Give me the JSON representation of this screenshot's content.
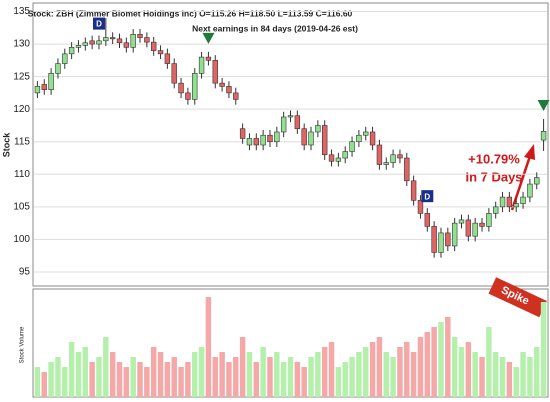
{
  "chart_data": {
    "type": "candlestick",
    "title": "Stock: ZBH (Zimmer Biomet Holdings Inc) O=115.26 H=118.50 L=113.59 C=116.60",
    "subtitle": "Next earnings in 84 days (2019-04-26 est)",
    "y_label": "Stock",
    "volume_label": "Stock Volume",
    "open": [
      122.5,
      123.8,
      123,
      125.5,
      127,
      128.5,
      129.5,
      129.8,
      130.5,
      130,
      130.5,
      131,
      130.8,
      130.2,
      129.5,
      131.5,
      131,
      130.3,
      129,
      128.5,
      127,
      124,
      122.5,
      121.5,
      125.5,
      128,
      127.5,
      124,
      123.5,
      122.5,
      117,
      114.5,
      115.5,
      114.5,
      116,
      115,
      116.5,
      118.8,
      119,
      117,
      114.5,
      116.5,
      117.5,
      113,
      112,
      112.5,
      113.5,
      115,
      116,
      116.5,
      114.5,
      111.5,
      111.8,
      113,
      112.5,
      109,
      106,
      104,
      102,
      98,
      101,
      99,
      102.5,
      103,
      100.5,
      102.5,
      102,
      104,
      105,
      106.5,
      105,
      105.5,
      106.5,
      108.5,
      115.26
    ],
    "high": [
      124.3,
      124.6,
      126.3,
      127.8,
      129.3,
      130.3,
      130.6,
      131,
      131.3,
      131.3,
      134,
      131.8,
      131.6,
      131,
      132.3,
      132.3,
      131.8,
      131.1,
      129.8,
      129.3,
      127.8,
      124.8,
      123.3,
      126.3,
      128.8,
      128.8,
      128.3,
      124.8,
      124.3,
      123.3,
      117.8,
      116.3,
      116.3,
      116.8,
      116.8,
      117.3,
      119.6,
      119.8,
      119.8,
      117.8,
      117.3,
      118.3,
      118.3,
      113.8,
      113.3,
      114.3,
      115.8,
      116.8,
      117.3,
      117.3,
      115.3,
      112.6,
      113.8,
      113.8,
      113.3,
      109.8,
      106.8,
      104.8,
      102.8,
      101.8,
      101.8,
      103.3,
      103.8,
      103.8,
      103.3,
      103.3,
      104.8,
      105.8,
      107.3,
      107.3,
      106.3,
      107.3,
      109.3,
      110.3,
      118.5
    ],
    "low": [
      121.7,
      122.2,
      122.2,
      124.7,
      126.2,
      127.7,
      128.7,
      129,
      129.2,
      129.2,
      129.7,
      130,
      129.4,
      128.7,
      128.7,
      130.2,
      129.5,
      128.2,
      127.7,
      126.2,
      123.2,
      121.7,
      120.7,
      120.7,
      124.7,
      126.7,
      123.2,
      122.7,
      121.7,
      120.7,
      114.7,
      113.7,
      113.7,
      113.7,
      114.2,
      114.2,
      115.7,
      118,
      116.2,
      113.7,
      113.7,
      115.7,
      112.2,
      111.2,
      111.2,
      111.7,
      112.7,
      114.2,
      115.2,
      113.7,
      110.7,
      110.7,
      111,
      111.7,
      108.2,
      105.2,
      103.2,
      101.2,
      97.2,
      97.2,
      98.2,
      98.2,
      101.7,
      99.7,
      99.7,
      101.2,
      101.2,
      103.2,
      104.2,
      104.2,
      104.2,
      104.7,
      105.7,
      107.7,
      113.59
    ],
    "close": [
      123.5,
      123,
      125.5,
      127,
      128.5,
      129.5,
      129.8,
      130.2,
      130,
      130.5,
      131,
      130.8,
      130.2,
      129.5,
      131.5,
      131,
      130.3,
      129,
      128.5,
      127,
      124,
      122.5,
      121.5,
      125.5,
      128,
      127.5,
      124,
      123.5,
      122.5,
      121.5,
      115.5,
      115.5,
      114.5,
      116,
      115,
      116.5,
      118.8,
      119,
      117,
      114.5,
      116.5,
      117.5,
      113,
      112,
      112.5,
      113.5,
      115,
      116,
      116.5,
      114.5,
      111.5,
      111.8,
      113,
      112.5,
      109,
      106,
      104,
      102,
      98,
      101,
      99,
      102.5,
      103,
      100.5,
      102.5,
      102,
      104,
      105,
      106.5,
      105,
      105.5,
      106.5,
      108.5,
      109.5,
      116.6
    ],
    "volume": [
      30,
      25,
      35,
      40,
      30,
      55,
      45,
      50,
      35,
      40,
      60,
      45,
      35,
      30,
      40,
      35,
      30,
      50,
      45,
      35,
      40,
      30,
      35,
      45,
      50,
      100,
      40,
      45,
      35,
      40,
      60,
      45,
      35,
      50,
      40,
      45,
      35,
      40,
      35,
      30,
      40,
      45,
      50,
      55,
      30,
      35,
      40,
      45,
      50,
      55,
      60,
      45,
      40,
      50,
      55,
      45,
      60,
      65,
      70,
      75,
      80,
      60,
      50,
      55,
      45,
      40,
      70,
      45,
      40,
      35,
      30,
      45,
      40,
      50,
      95
    ],
    "volume_ylim": [
      0,
      105
    ],
    "up_color": "#8fe08f",
    "down_color": "#e06464",
    "ylim": [
      93,
      136
    ],
    "yticks": [
      95,
      100,
      105,
      110,
      115,
      120,
      125,
      130,
      135
    ],
    "grid": true,
    "dividend_events": [
      {
        "label": "D",
        "candle": 9
      },
      {
        "label": "D",
        "candle": 57
      }
    ],
    "earnings_candles": [
      25,
      74
    ],
    "annotations": [
      "+10.79%",
      "In 7 Days",
      "Spike"
    ]
  }
}
